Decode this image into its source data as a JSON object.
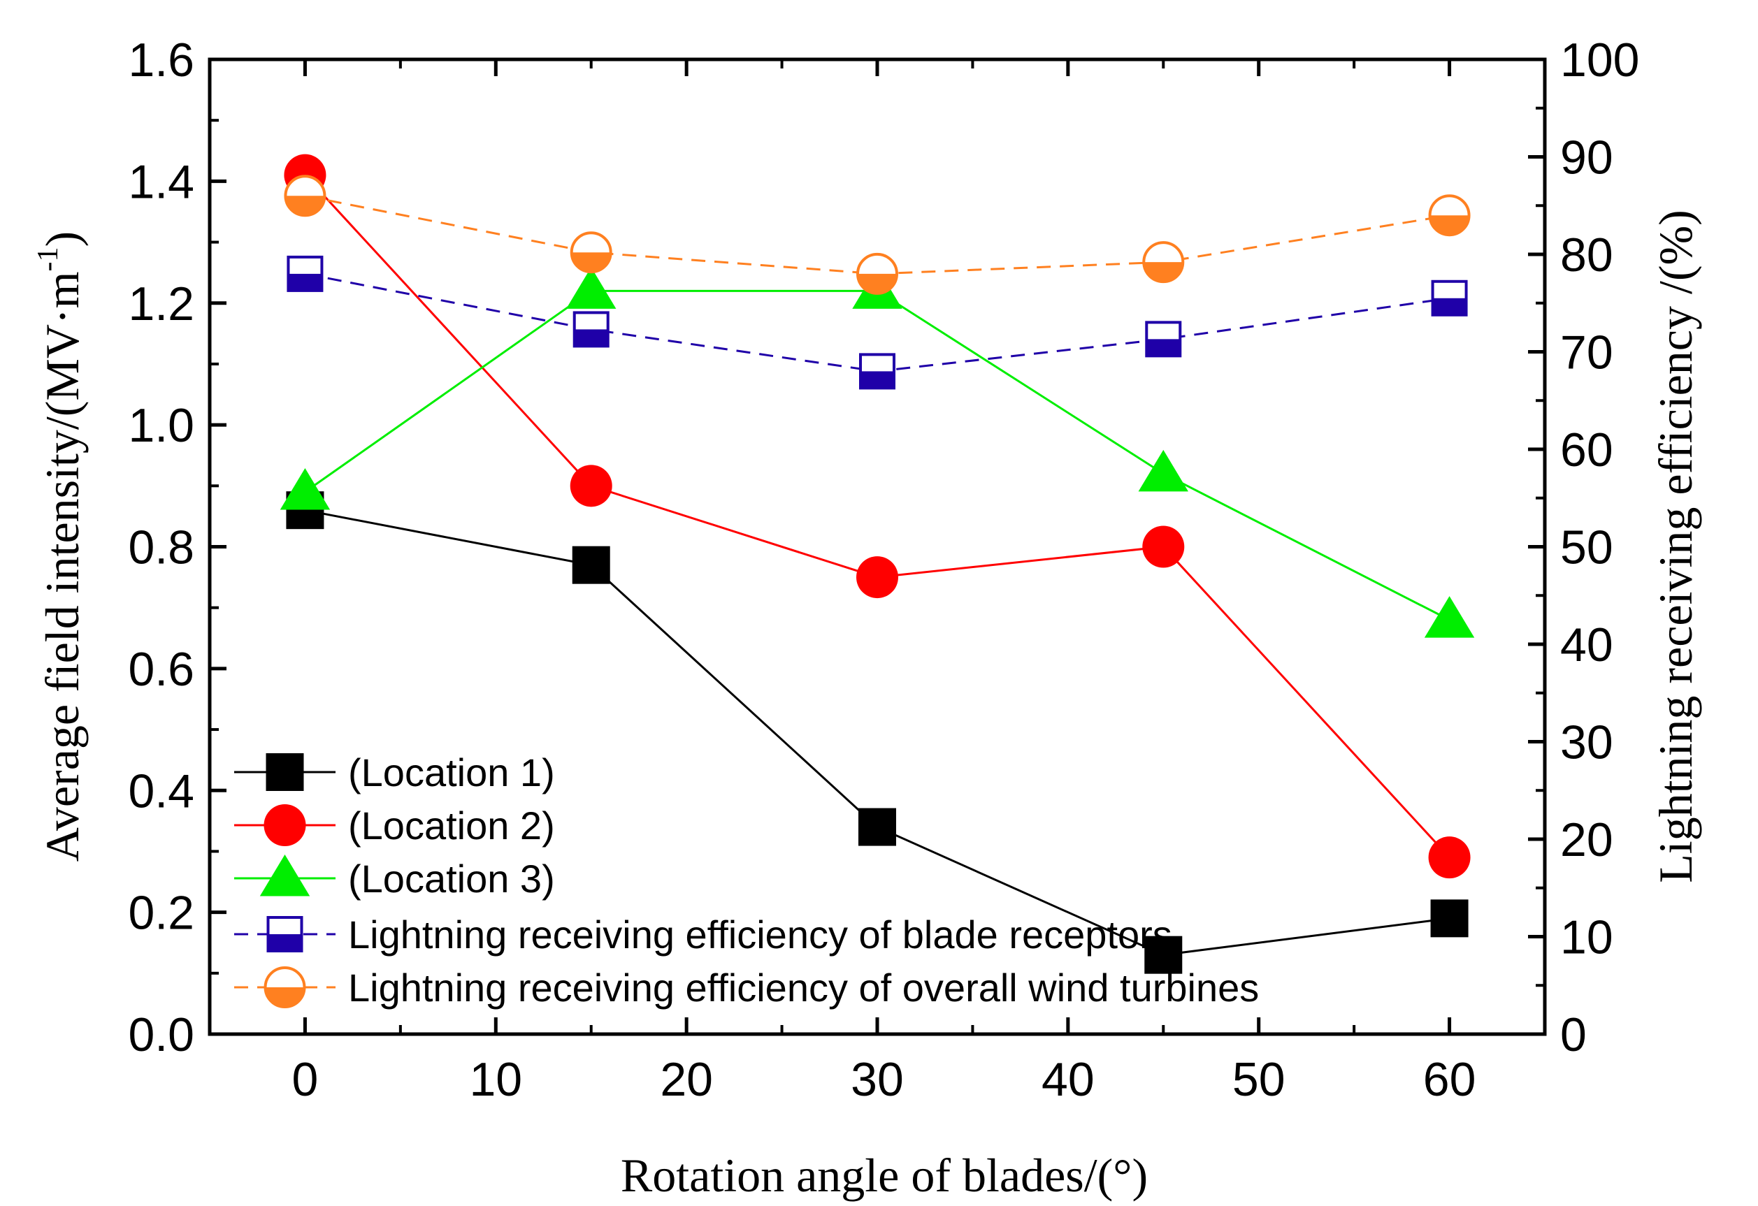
{
  "chart_data": {
    "type": "line",
    "title": "",
    "xlabel": "Rotation angle of blades/(°)",
    "ylabel_left": {
      "main": "Average field intensity/(MV·m",
      "sup": "-1",
      "tail": ")"
    },
    "ylabel_right": "Lightning receiving efficiency /(%)",
    "xlim": [
      -5,
      65
    ],
    "ylim_left": [
      0,
      1.6
    ],
    "ylim_right": [
      0,
      100
    ],
    "x_ticks": [
      0,
      10,
      20,
      30,
      40,
      50,
      60
    ],
    "x_tick_labels": [
      "0",
      "10",
      "20",
      "30",
      "40",
      "50",
      "60"
    ],
    "y_left_ticks": [
      0.0,
      0.2,
      0.4,
      0.6,
      0.8,
      1.0,
      1.2,
      1.4,
      1.6
    ],
    "y_left_tick_labels": [
      "0.0",
      "0.2",
      "0.4",
      "0.6",
      "0.8",
      "1.0",
      "1.2",
      "1.4",
      "1.6"
    ],
    "y_right_ticks": [
      0,
      10,
      20,
      30,
      40,
      50,
      60,
      70,
      80,
      90,
      100
    ],
    "y_right_tick_labels": [
      "0",
      "10",
      "20",
      "30",
      "40",
      "50",
      "60",
      "70",
      "80",
      "90",
      "100"
    ],
    "legend_position": "bottom-left",
    "grid": false,
    "x": [
      0,
      15,
      30,
      45,
      60
    ],
    "series": [
      {
        "name": "(Location 1)",
        "axis": "left",
        "values": [
          0.86,
          0.77,
          0.34,
          0.13,
          0.19
        ],
        "color": "#000000",
        "marker": "square-filled",
        "dash": "solid"
      },
      {
        "name": "(Location 2)",
        "axis": "left",
        "values": [
          1.41,
          0.9,
          0.75,
          0.8,
          0.29
        ],
        "color": "#ff0000",
        "marker": "circle-filled",
        "dash": "solid"
      },
      {
        "name": "(Location 3)",
        "axis": "left",
        "values": [
          0.89,
          1.22,
          1.22,
          0.92,
          0.68
        ],
        "color": "#00ee00",
        "marker": "triangle-filled",
        "dash": "solid"
      },
      {
        "name": "Lightning receiving efficiency of blade receptors",
        "axis": "right",
        "values": [
          78,
          72.3,
          68,
          71.3,
          75.5
        ],
        "color": "#1f00a8",
        "marker": "square-half",
        "dash": "dashed"
      },
      {
        "name": "Lightning receiving efficiency of overall wind turbines",
        "axis": "right",
        "values": [
          86,
          80.2,
          78,
          79.2,
          84
        ],
        "color": "#ff8020",
        "marker": "circle-half",
        "dash": "dashed"
      }
    ]
  }
}
